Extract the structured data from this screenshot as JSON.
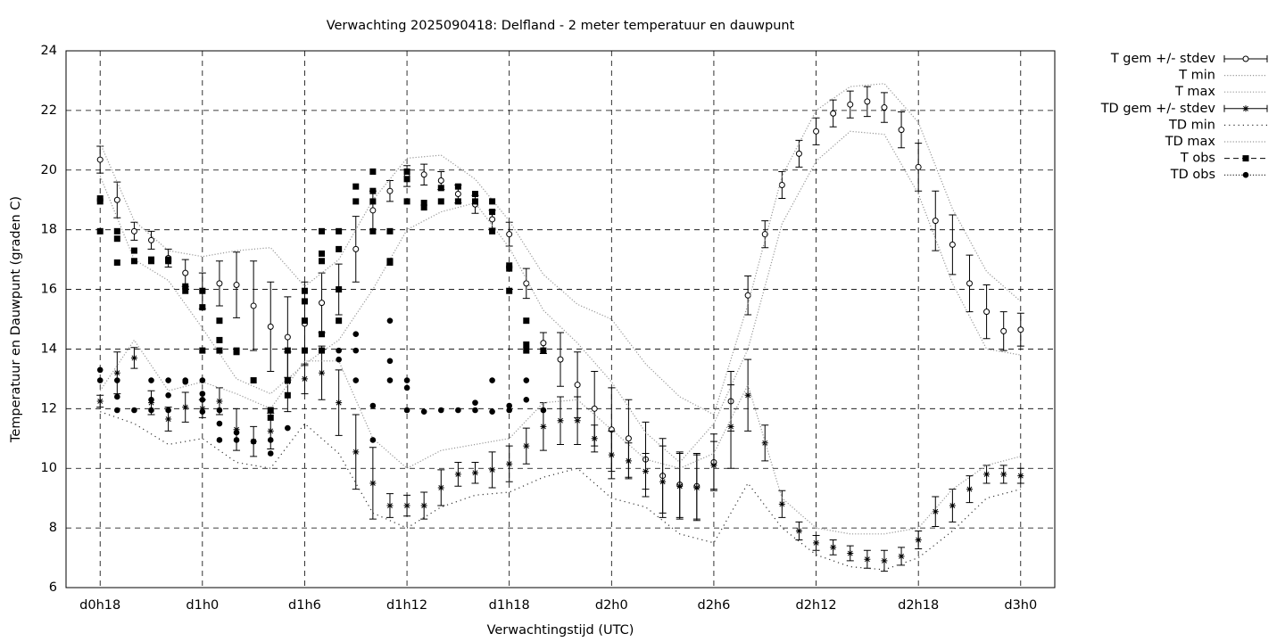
{
  "chart_data": {
    "type": "line",
    "title": "Verwachting 2025090418: Delfland - 2 meter temperatuur en dauwpunt",
    "xlabel": "Verwachtingstijd (UTC)",
    "ylabel": "Temperatuur en Dauwpunt (graden C)",
    "xlim": [
      16,
      74
    ],
    "xticks": [
      {
        "value": 18,
        "label": "d0h18"
      },
      {
        "value": 24,
        "label": "d1h0"
      },
      {
        "value": 30,
        "label": "d1h6"
      },
      {
        "value": 36,
        "label": "d1h12"
      },
      {
        "value": 42,
        "label": "d1h18"
      },
      {
        "value": 48,
        "label": "d2h0"
      },
      {
        "value": 54,
        "label": "d2h6"
      },
      {
        "value": 60,
        "label": "d2h12"
      },
      {
        "value": 66,
        "label": "d2h18"
      },
      {
        "value": 72,
        "label": "d3h0"
      }
    ],
    "ylim": [
      6,
      24
    ],
    "yticks": [
      6,
      8,
      10,
      12,
      14,
      16,
      18,
      20,
      22,
      24
    ],
    "grid": true,
    "legend": "outside-right",
    "series": [
      {
        "name": "T gem +/- stdev",
        "style": "errorbar",
        "marker": "circle",
        "color": "#000000",
        "x": [
          18,
          19,
          20,
          21,
          22,
          23,
          24,
          25,
          26,
          27,
          28,
          29,
          30,
          31,
          32,
          33,
          34,
          35,
          36,
          37,
          38,
          39,
          40,
          41,
          42,
          43,
          44,
          45,
          46,
          47,
          48,
          49,
          50,
          51,
          52,
          53,
          54,
          55,
          56,
          57,
          58,
          59,
          60,
          61,
          62,
          63,
          64,
          65,
          66,
          67,
          68,
          69,
          70,
          71,
          72
        ],
        "values": [
          20.35,
          19.0,
          17.95,
          17.65,
          17.05,
          16.55,
          15.95,
          16.2,
          16.15,
          15.45,
          14.75,
          14.4,
          14.85,
          15.55,
          16.0,
          17.35,
          18.65,
          19.3,
          19.8,
          19.85,
          19.65,
          19.2,
          18.85,
          18.35,
          17.85,
          16.2,
          14.2,
          13.65,
          12.8,
          12.0,
          11.3,
          11.0,
          10.3,
          9.75,
          9.45,
          9.4,
          10.2,
          12.25,
          15.8,
          17.85,
          19.5,
          20.55,
          21.3,
          21.9,
          22.2,
          22.3,
          22.1,
          21.35,
          20.1,
          18.3,
          17.5,
          16.2,
          15.25,
          14.6,
          14.65
        ],
        "errors": [
          0.45,
          0.6,
          0.3,
          0.3,
          0.3,
          0.45,
          0.6,
          0.75,
          1.1,
          1.5,
          1.5,
          1.35,
          1.4,
          1.0,
          0.85,
          1.1,
          0.65,
          0.35,
          0.35,
          0.35,
          0.3,
          0.3,
          0.3,
          0.3,
          0.4,
          0.5,
          0.35,
          0.9,
          1.1,
          1.25,
          1.4,
          1.3,
          1.25,
          1.25,
          1.1,
          1.1,
          0.95,
          1.0,
          0.65,
          0.45,
          0.45,
          0.45,
          0.45,
          0.45,
          0.45,
          0.5,
          0.5,
          0.6,
          0.8,
          1.0,
          1.0,
          0.95,
          0.9,
          0.65,
          0.55
        ]
      },
      {
        "name": "T min",
        "style": "line",
        "dash": "dotted",
        "color": "#999999",
        "x": [
          18,
          20,
          22,
          24,
          26,
          28,
          30,
          32,
          34,
          36,
          38,
          40,
          42,
          44,
          46,
          48,
          50,
          52,
          54,
          56,
          58,
          60,
          62,
          64,
          66,
          68,
          70,
          72
        ],
        "values": [
          19.8,
          17.0,
          16.3,
          14.7,
          13.0,
          12.5,
          13.5,
          14.3,
          16.0,
          18.0,
          18.6,
          18.9,
          17.4,
          15.3,
          14.2,
          12.9,
          11.2,
          10.2,
          11.5,
          14.0,
          18.2,
          20.3,
          21.3,
          21.2,
          19.2,
          16.2,
          14.0,
          13.8
        ]
      },
      {
        "name": "T max",
        "style": "line",
        "dash": "dotted",
        "color": "#999999",
        "x": [
          18,
          20,
          22,
          24,
          26,
          28,
          30,
          32,
          34,
          36,
          38,
          40,
          42,
          44,
          46,
          48,
          50,
          52,
          54,
          56,
          58,
          60,
          62,
          64,
          66,
          68,
          70,
          72
        ],
        "values": [
          20.9,
          18.3,
          17.3,
          17.1,
          17.3,
          17.4,
          16.1,
          17.0,
          19.0,
          20.4,
          20.5,
          19.7,
          18.3,
          16.5,
          15.5,
          15.0,
          13.5,
          12.4,
          11.8,
          15.5,
          19.8,
          22.0,
          22.8,
          22.9,
          21.6,
          18.7,
          16.6,
          15.6
        ]
      },
      {
        "name": "TD gem +/- stdev",
        "style": "errorbar",
        "marker": "star",
        "color": "#000000",
        "x": [
          18,
          19,
          20,
          21,
          22,
          23,
          24,
          25,
          26,
          27,
          28,
          29,
          30,
          31,
          32,
          33,
          34,
          35,
          36,
          37,
          38,
          39,
          40,
          41,
          42,
          43,
          44,
          45,
          46,
          47,
          48,
          49,
          50,
          51,
          52,
          53,
          54,
          55,
          56,
          57,
          58,
          59,
          60,
          61,
          62,
          63,
          64,
          65,
          66,
          67,
          68,
          69,
          70,
          71,
          72
        ],
        "values": [
          12.25,
          13.2,
          13.7,
          12.2,
          11.65,
          12.05,
          12.0,
          12.25,
          11.3,
          10.9,
          11.25,
          12.9,
          13.0,
          13.2,
          12.2,
          10.55,
          9.5,
          8.75,
          8.75,
          8.75,
          9.35,
          9.8,
          9.85,
          9.95,
          10.15,
          10.75,
          11.4,
          11.6,
          11.6,
          11.0,
          10.45,
          10.25,
          9.9,
          9.55,
          9.4,
          9.35,
          10.1,
          11.4,
          12.45,
          10.85,
          8.8,
          7.9,
          7.5,
          7.35,
          7.15,
          6.95,
          6.9,
          7.05,
          7.6,
          8.55,
          8.75,
          9.3,
          9.8,
          9.8,
          9.75
        ],
        "errors": [
          0.2,
          0.7,
          0.35,
          0.4,
          0.4,
          0.5,
          0.3,
          0.45,
          0.7,
          0.5,
          0.6,
          1.0,
          0.5,
          0.9,
          1.1,
          1.25,
          1.2,
          0.4,
          0.35,
          0.45,
          0.6,
          0.4,
          0.35,
          0.6,
          0.6,
          0.6,
          0.8,
          0.8,
          0.8,
          0.45,
          0.8,
          0.6,
          0.6,
          1.2,
          1.1,
          1.1,
          0.8,
          1.4,
          1.2,
          0.6,
          0.45,
          0.3,
          0.25,
          0.25,
          0.25,
          0.3,
          0.35,
          0.3,
          0.3,
          0.5,
          0.55,
          0.45,
          0.3,
          0.3,
          0.25
        ]
      },
      {
        "name": "TD min",
        "style": "line",
        "dash": "sparse",
        "color": "#333333",
        "x": [
          18,
          20,
          22,
          24,
          26,
          28,
          30,
          32,
          34,
          36,
          38,
          40,
          42,
          44,
          46,
          48,
          50,
          52,
          54,
          56,
          58,
          60,
          62,
          64,
          66,
          68,
          70,
          72
        ],
        "values": [
          11.9,
          11.5,
          10.8,
          11.0,
          10.2,
          10.0,
          11.5,
          10.5,
          8.5,
          8.0,
          8.7,
          9.1,
          9.2,
          9.7,
          10.0,
          9.0,
          8.7,
          7.8,
          7.5,
          9.5,
          8.0,
          7.1,
          6.7,
          6.6,
          7.0,
          7.9,
          9.0,
          9.3
        ]
      },
      {
        "name": "TD max",
        "style": "line",
        "dash": "dotted",
        "color": "#999999",
        "x": [
          18,
          20,
          22,
          24,
          26,
          28,
          30,
          32,
          34,
          36,
          38,
          40,
          42,
          44,
          46,
          48,
          50,
          52,
          54,
          56,
          58,
          60,
          62,
          64,
          66,
          68,
          70,
          72
        ],
        "values": [
          12.6,
          14.3,
          12.6,
          12.9,
          12.5,
          12.0,
          13.6,
          13.6,
          11.0,
          10.0,
          10.6,
          10.8,
          11.0,
          12.2,
          12.3,
          11.3,
          10.3,
          10.0,
          10.5,
          12.8,
          9.0,
          8.0,
          7.8,
          7.8,
          8.0,
          9.3,
          10.1,
          10.4
        ]
      },
      {
        "name": "T obs",
        "style": "points",
        "marker": "square",
        "color": "#000000",
        "x": [
          18,
          18,
          18,
          19,
          19,
          19,
          20,
          20,
          21,
          21,
          22,
          22,
          23,
          23,
          24,
          24,
          24,
          25,
          25,
          25,
          26,
          26,
          27,
          28,
          28,
          29,
          29,
          29,
          30,
          30,
          30,
          30,
          31,
          31,
          31,
          31,
          31,
          32,
          32,
          32,
          32,
          33,
          33,
          34,
          34,
          34,
          34,
          35,
          35,
          35,
          36,
          36,
          36,
          37,
          37,
          38,
          38,
          39,
          39,
          40,
          40,
          41,
          41,
          41,
          42,
          42,
          42,
          43,
          43,
          43,
          44
        ],
        "values": [
          19.05,
          18.95,
          17.95,
          17.95,
          17.7,
          16.9,
          17.3,
          16.95,
          17.0,
          16.95,
          16.95,
          17.0,
          16.1,
          15.95,
          15.95,
          15.4,
          13.95,
          14.95,
          14.3,
          13.95,
          13.95,
          13.9,
          12.95,
          11.95,
          11.7,
          13.95,
          12.95,
          12.45,
          15.95,
          15.6,
          14.95,
          13.95,
          17.95,
          17.2,
          16.95,
          14.5,
          13.95,
          17.95,
          17.35,
          16.0,
          14.95,
          19.45,
          18.95,
          19.95,
          19.3,
          18.95,
          17.95,
          17.95,
          16.95,
          16.9,
          19.95,
          19.7,
          18.95,
          18.9,
          18.75,
          19.4,
          18.95,
          19.45,
          18.95,
          19.2,
          18.95,
          18.95,
          18.6,
          17.95,
          16.8,
          16.7,
          15.95,
          14.95,
          14.15,
          13.95,
          13.95
        ]
      },
      {
        "name": "TD obs",
        "style": "points",
        "marker": "dot",
        "color": "#000000",
        "x": [
          18,
          18,
          19,
          19,
          19,
          20,
          21,
          21,
          21,
          22,
          22,
          22,
          23,
          23,
          24,
          24,
          24,
          24,
          25,
          25,
          25,
          26,
          26,
          27,
          28,
          28,
          29,
          30,
          31,
          31,
          32,
          32,
          32,
          33,
          33,
          33,
          34,
          34,
          35,
          35,
          35,
          36,
          36,
          36,
          37,
          38,
          39,
          40,
          40,
          41,
          41,
          42,
          42,
          43,
          43,
          44
        ],
        "values": [
          13.3,
          12.95,
          12.95,
          12.4,
          11.95,
          11.95,
          12.95,
          12.3,
          11.95,
          12.95,
          12.45,
          11.95,
          12.95,
          12.9,
          12.95,
          12.5,
          12.3,
          11.9,
          11.95,
          11.5,
          10.95,
          11.2,
          10.95,
          10.9,
          10.95,
          10.5,
          11.35,
          13.95,
          14.5,
          13.95,
          14.95,
          13.95,
          13.65,
          14.5,
          13.95,
          12.95,
          12.1,
          10.95,
          14.95,
          13.6,
          12.95,
          12.95,
          12.7,
          11.95,
          11.9,
          11.95,
          11.95,
          12.2,
          11.95,
          12.95,
          11.9,
          12.1,
          11.95,
          12.95,
          12.3,
          11.95
        ]
      }
    ]
  }
}
